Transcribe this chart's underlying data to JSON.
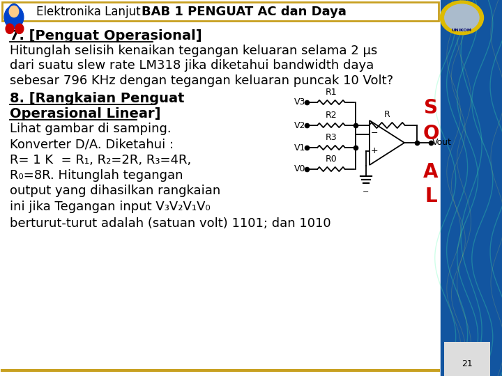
{
  "header_left": "Elektronika Lanjut",
  "header_center": "BAB 1 PENGUAT AC dan Daya",
  "bg_color": "#f0f0f0",
  "border_color": "#c8a020",
  "right_bg_color": "#1a5faa",
  "sol_color": "#cc0000",
  "number_label": "21",
  "line1": "7. [Penguat Operasional]",
  "line2": "Hitunglah selisih kenaikan tegangan keluaran selama 2 μs",
  "line3": "dari suatu slew rate LM318 jika diketahui bandwidth daya",
  "line4": "sebesar 796 KHz dengan tegangan keluaran puncak 10 Volt?",
  "line5": "8. [Rangkaian Penguat",
  "line6": "Operasional Linear]",
  "line7": "Lihat gambar di samping.",
  "line8": "Konverter D/A. Diketahui :",
  "line9a": "R= 1 K  = R",
  "line9b": "1",
  "line9c": ", R",
  "line9d": "2",
  "line9e": "=2R, R",
  "line9f": "3",
  "line9g": "=4R,",
  "line10a": "R",
  "line10b": "0",
  "line10c": "=8R. Hitunglah tegangan",
  "line11": "output yang dihasilkan rangkaian",
  "line12a": "ini jika Tegangan input V",
  "line12b": "3",
  "line12c": "V",
  "line12d": "2",
  "line12e": "V",
  "line12f": "1",
  "line12g": "V",
  "line12h": "0",
  "line13": "berturut-turut adalah (satuan volt) 1101; dan 1010",
  "font_size_body": 13,
  "font_size_header": 12,
  "header_box_color": "#d4aa00"
}
